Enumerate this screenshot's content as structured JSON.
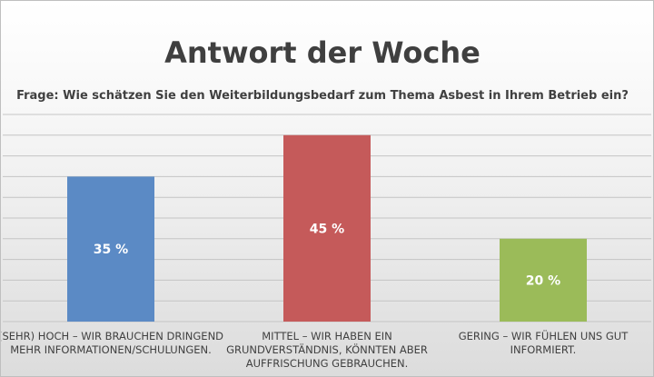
{
  "chart_data": {
    "type": "bar",
    "title": "Antwort der Woche",
    "subtitle": "Frage: Wie schätzen Sie den Weiterbildungsbedarf zum Thema Asbest in Ihrem Betrieb ein?",
    "categories": [
      [
        "(SEHR) HOCH – WIR BRAUCHEN DRINGEND",
        "MEHR INFORMATIONEN/SCHULUNGEN."
      ],
      [
        "MITTEL – WIR HABEN EIN",
        "GRUNDVERSTÄNDNIS, KÖNNTEN ABER",
        "AUFFRISCHUNG GEBRAUCHEN."
      ],
      [
        "GERING – WIR FÜHLEN UNS GUT",
        "INFORMIERT."
      ]
    ],
    "values": [
      35,
      45,
      20
    ],
    "data_labels": [
      "35 %",
      "45 %",
      "20 %"
    ],
    "ylim": [
      0,
      50
    ],
    "grid": true,
    "legend": "none",
    "colors": [
      "#5b8ac5",
      "#c55a5a",
      "#9bbb59"
    ]
  }
}
